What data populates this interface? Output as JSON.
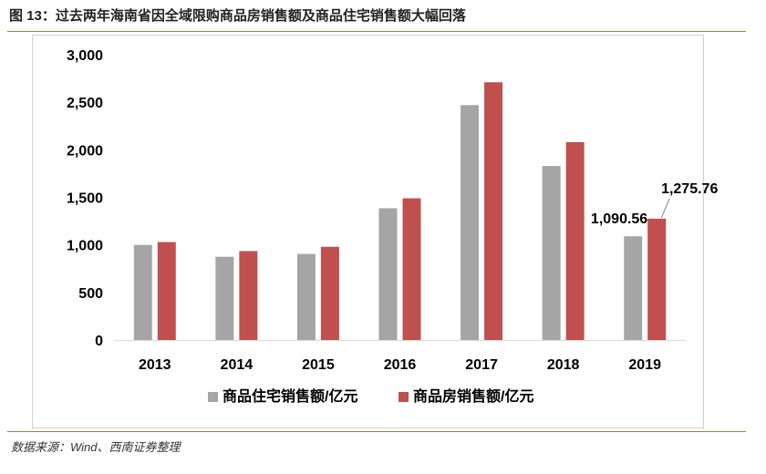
{
  "figure": {
    "title": "图 13：过去两年海南省因全域限购商品房销售额及商品住宅销售额大幅回落",
    "source": "数据来源：Wind、西南证券整理"
  },
  "colors": {
    "series_1": "#a5a5a5",
    "series_2": "#c0504d",
    "rule": "#b07a3a"
  },
  "chart_data": {
    "type": "bar",
    "categories": [
      "2013",
      "2014",
      "2015",
      "2016",
      "2017",
      "2018",
      "2019"
    ],
    "series": [
      {
        "name": "商品住宅销售额/亿元",
        "values": [
          1000,
          875,
          905,
          1385,
          2470,
          1830,
          1090.56
        ]
      },
      {
        "name": "商品房销售额/亿元",
        "values": [
          1030,
          935,
          980,
          1490,
          2710,
          2080,
          1275.76
        ]
      }
    ],
    "ylim": [
      0,
      3000
    ],
    "yticks": [
      0,
      500,
      1000,
      1500,
      2000,
      2500,
      3000
    ],
    "ytick_labels": [
      "0",
      "500",
      "1,000",
      "1,500",
      "2,000",
      "2,500",
      "3,000"
    ],
    "annotations": [
      {
        "category": "2019",
        "series": 0,
        "text": "1,090.56"
      },
      {
        "category": "2019",
        "series": 1,
        "text": "1,275.76"
      }
    ],
    "grid": false,
    "legend": "bottom"
  }
}
